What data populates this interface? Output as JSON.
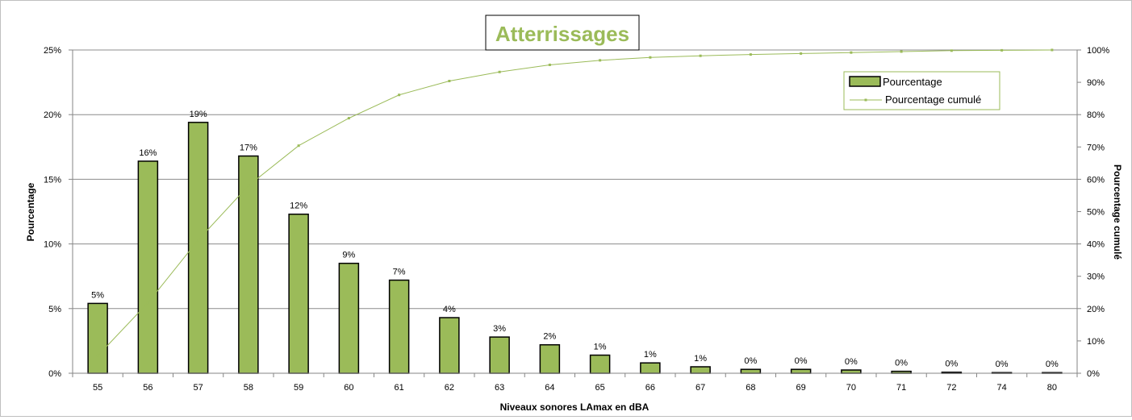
{
  "chart_data": {
    "type": "bar",
    "title": "Atterrissages",
    "xlabel": "Niveaux sonores LAmax en dBA",
    "ylabel": "Pourcentage",
    "y2label": "Pourcentage cumulé",
    "categories": [
      "55",
      "56",
      "57",
      "58",
      "59",
      "60",
      "61",
      "62",
      "63",
      "64",
      "65",
      "66",
      "67",
      "68",
      "69",
      "70",
      "71",
      "72",
      "74",
      "80"
    ],
    "series": [
      {
        "name": "Pourcentage",
        "type": "bar",
        "axis": "left",
        "values": [
          5.4,
          16.4,
          19.4,
          16.8,
          12.3,
          8.5,
          7.2,
          4.3,
          2.8,
          2.2,
          1.4,
          0.8,
          0.5,
          0.3,
          0.3,
          0.25,
          0.15,
          0.08,
          0.05,
          0.05
        ],
        "labels": [
          "5%",
          "16%",
          "19%",
          "17%",
          "12%",
          "9%",
          "7%",
          "4%",
          "3%",
          "2%",
          "1%",
          "1%",
          "1%",
          "0%",
          "0%",
          "0%",
          "0%",
          "0%",
          "0%",
          "0%"
        ]
      },
      {
        "name": "Pourcentage cumulé",
        "type": "line",
        "axis": "right",
        "values": [
          5.4,
          21.8,
          41.2,
          58.0,
          70.4,
          78.9,
          86.1,
          90.4,
          93.2,
          95.4,
          96.8,
          97.7,
          98.2,
          98.6,
          98.9,
          99.2,
          99.5,
          99.8,
          99.9,
          100.0
        ]
      }
    ],
    "ylim": [
      0,
      25
    ],
    "y2lim": [
      0,
      100
    ],
    "yticks": [
      "0%",
      "5%",
      "10%",
      "15%",
      "20%",
      "25%"
    ],
    "y2ticks": [
      "0%",
      "10%",
      "20%",
      "30%",
      "40%",
      "50%",
      "60%",
      "70%",
      "80%",
      "90%",
      "100%"
    ],
    "grid": true,
    "legend_position": "top-right",
    "colors": {
      "bar_fill": "#9bbb59",
      "bar_stroke": "#000000",
      "line": "#9bbb59",
      "title": "#9bbb59",
      "grid": "#8c8c8c"
    }
  }
}
